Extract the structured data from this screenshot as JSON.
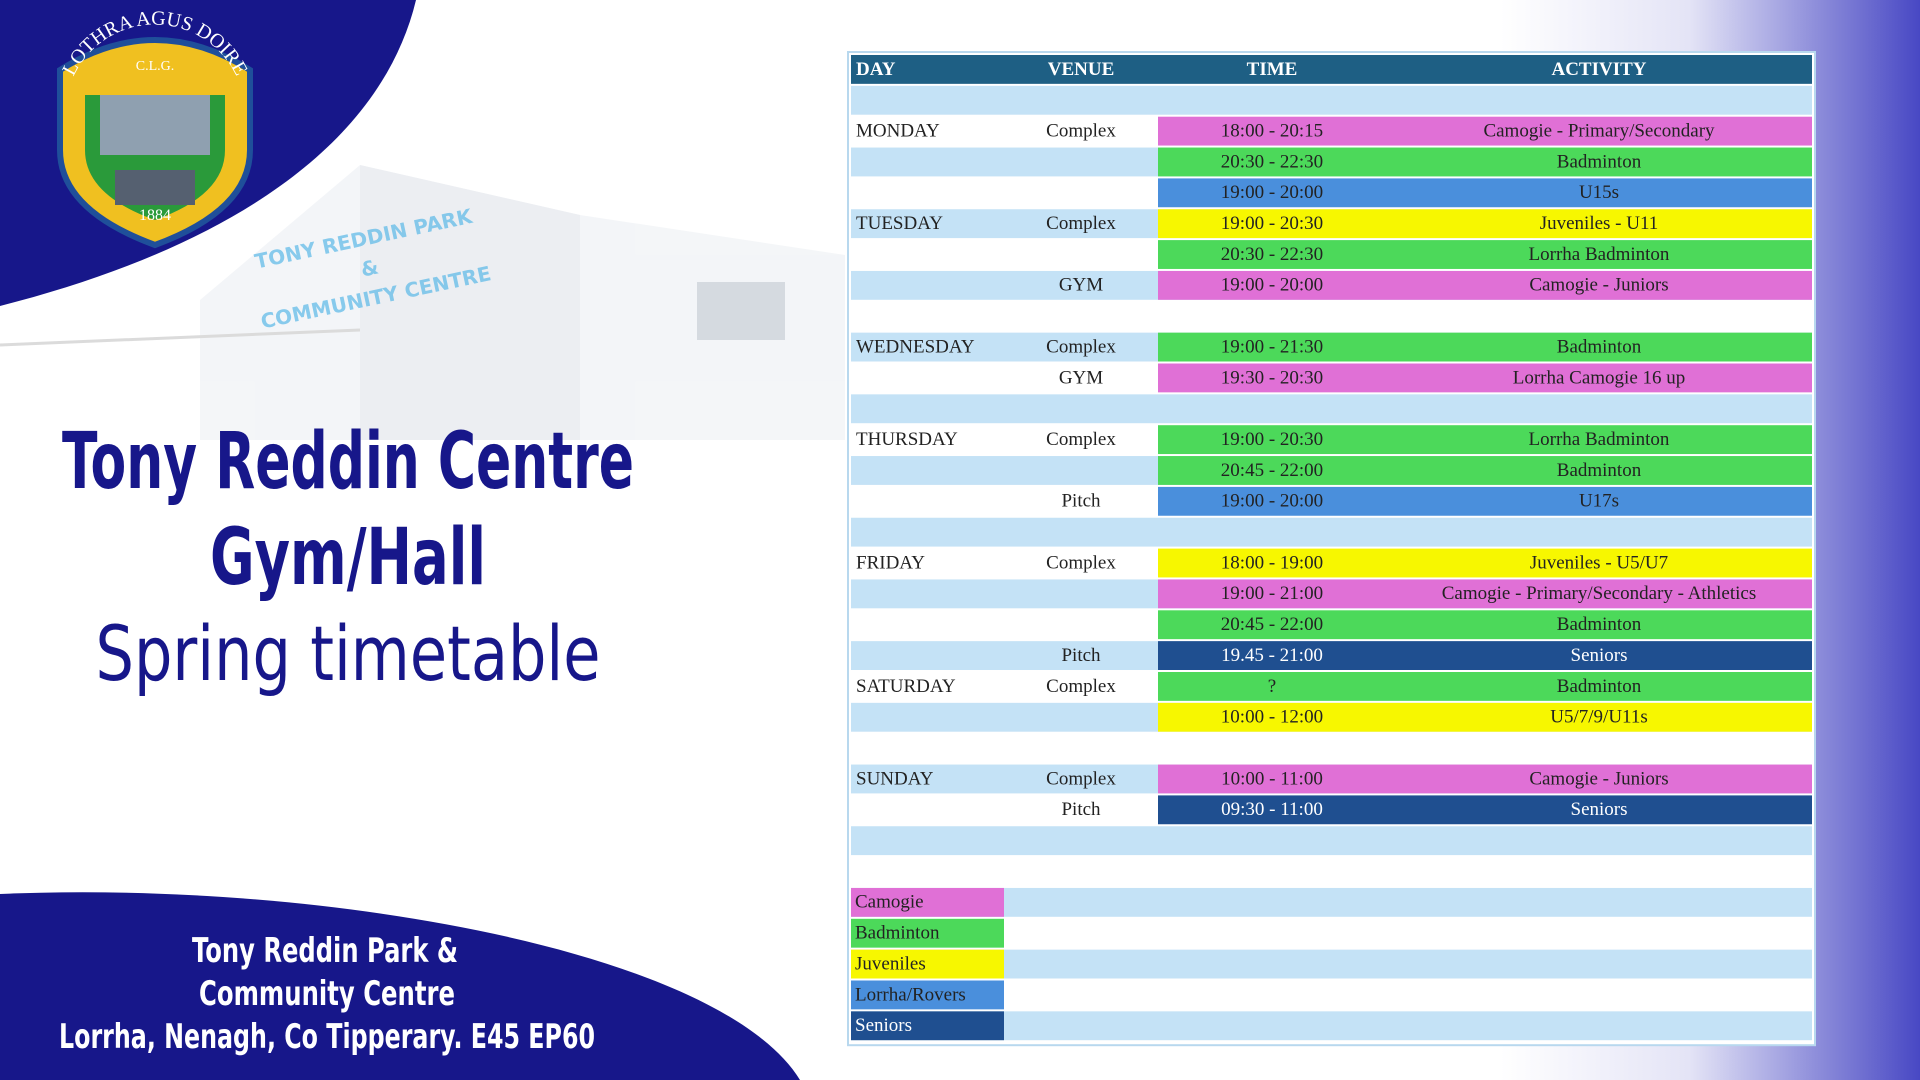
{
  "logo": {
    "arc_text": "LOTHRA AGUS DOIRE",
    "initials": "C.L.G.",
    "year": "1884"
  },
  "sign": [
    "TONY REDDIN PARK",
    "&",
    "COMMUNITY CENTRE"
  ],
  "title": [
    "Tony Reddin Centre",
    "Gym/Hall"
  ],
  "subtitle": "Spring timetable",
  "address": [
    "Tony Reddin Park &",
    "Community Centre",
    "Lorrha, Nenagh, Co Tipperary. E45 EP60"
  ],
  "table": {
    "header": [
      "DAY",
      "VENUE",
      "TIME",
      "ACTIVITY"
    ],
    "rows": [
      [
        null,
        null,
        null,
        null
      ],
      [
        "MONDAY",
        "Complex",
        "18:00 - 20:15",
        "Camogie - Primary/Secondary"
      ],
      [
        null,
        null,
        "20:30 - 22:30",
        "Badminton"
      ],
      [
        null,
        null,
        "19:00 - 20:00",
        "U15s"
      ],
      [
        "TUESDAY",
        "Complex",
        "19:00 - 20:30",
        "Juveniles - U11"
      ],
      [
        null,
        null,
        "20:30 - 22:30",
        "Lorrha Badminton"
      ],
      [
        null,
        "GYM",
        "19:00 - 20:00",
        "Camogie - Juniors"
      ],
      [
        null,
        null,
        null,
        null
      ],
      [
        "WEDNESDAY",
        "Complex",
        "19:00 - 21:30",
        "Badminton"
      ],
      [
        null,
        "GYM",
        "19:30 - 20:30",
        "Lorrha Camogie 16 up"
      ],
      [
        null,
        null,
        null,
        null
      ],
      [
        "THURSDAY",
        "Complex",
        "19:00 - 20:30",
        "Lorrha Badminton"
      ],
      [
        null,
        null,
        "20:45 - 22:00",
        "Badminton"
      ],
      [
        null,
        "Pitch",
        "19:00 - 20:00",
        "U17s"
      ],
      [
        null,
        null,
        null,
        null
      ],
      [
        "FRIDAY",
        "Complex",
        "18:00 - 19:00",
        "Juveniles - U5/U7"
      ],
      [
        null,
        null,
        "19:00 - 21:00",
        "Camogie - Primary/Secondary - Athletics"
      ],
      [
        null,
        null,
        "20:45 - 22:00",
        "Badminton"
      ],
      [
        null,
        "Pitch",
        "19.45 - 21:00",
        "Seniors"
      ],
      [
        "SATURDAY",
        "Complex",
        "?",
        "Badminton"
      ],
      [
        null,
        null,
        "10:00 - 12:00",
        "U5/7/9/U11s"
      ],
      [
        null,
        null,
        null,
        null
      ],
      [
        "SUNDAY",
        "Complex",
        "10:00 - 11:00",
        "Camogie - Juniors"
      ],
      [
        null,
        "Pitch",
        "09:30 - 11:00",
        "Seniors"
      ],
      [
        null,
        null,
        null,
        null
      ],
      [
        null,
        null,
        null,
        null
      ]
    ],
    "row_colors": [
      null,
      "#e070d6",
      "#4cd95a",
      "#4a8fdc",
      "#f7f700",
      "#4cd95a",
      "#e070d6",
      null,
      "#4cd95a",
      "#e070d6",
      null,
      "#4cd95a",
      "#4cd95a",
      "#4a8fdc",
      null,
      "#f7f700",
      "#e070d6",
      "#4cd95a",
      "#1f4f90",
      "#4cd95a",
      "#f7f700",
      null,
      "#e070d6",
      "#1f4f90",
      null,
      null
    ],
    "legend": [
      {
        "label": "Camogie",
        "color": "#e070d6"
      },
      {
        "label": "Badminton",
        "color": "#4cd95a"
      },
      {
        "label": "Juveniles",
        "color": "#f7f700"
      },
      {
        "label": "Lorrha/Rovers",
        "color": "#4a8fdc"
      },
      {
        "label": "Seniors",
        "color": "#1f4f90"
      }
    ]
  }
}
